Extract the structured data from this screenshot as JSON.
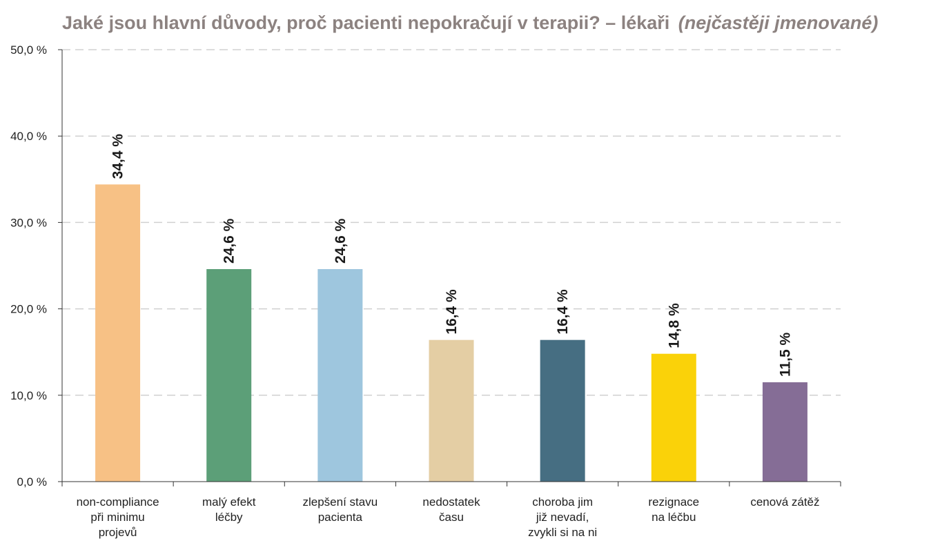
{
  "chart_data": {
    "type": "bar",
    "title": "Jaké jsou hlavní důvody, proč pacienti nepokračují v terapii? – lékaři",
    "subtitle": "(nejčastěji jmenované)",
    "categories": [
      [
        "non-compliance",
        "při minimu",
        "projevů"
      ],
      [
        "malý efekt",
        "léčby"
      ],
      [
        "zlepšení stavu",
        "pacienta"
      ],
      [
        "nedostatek",
        "času"
      ],
      [
        "choroba jim",
        "již nevadí,",
        "zvykli si na ni"
      ],
      [
        "rezignace",
        "na léčbu"
      ],
      [
        "cenová zátěž"
      ]
    ],
    "values": [
      34.4,
      24.6,
      24.6,
      16.4,
      16.4,
      14.8,
      11.5
    ],
    "value_labels": [
      "34,4 %",
      "24,6 %",
      "24,6 %",
      "16,4 %",
      "16,4 %",
      "14,8 %",
      "11,5 %"
    ],
    "colors": [
      "#f7c185",
      "#5c9f78",
      "#9ec6de",
      "#e4cea4",
      "#466e82",
      "#fad209",
      "#856d96"
    ],
    "ylim": [
      0,
      50
    ],
    "yticks": [
      0,
      10,
      20,
      30,
      40,
      50
    ],
    "ytick_labels": [
      "0,0 %",
      "10,0 %",
      "20,0 %",
      "30,0 %",
      "40,0 %",
      "50,0 %"
    ],
    "grid": true,
    "legend": "none"
  }
}
